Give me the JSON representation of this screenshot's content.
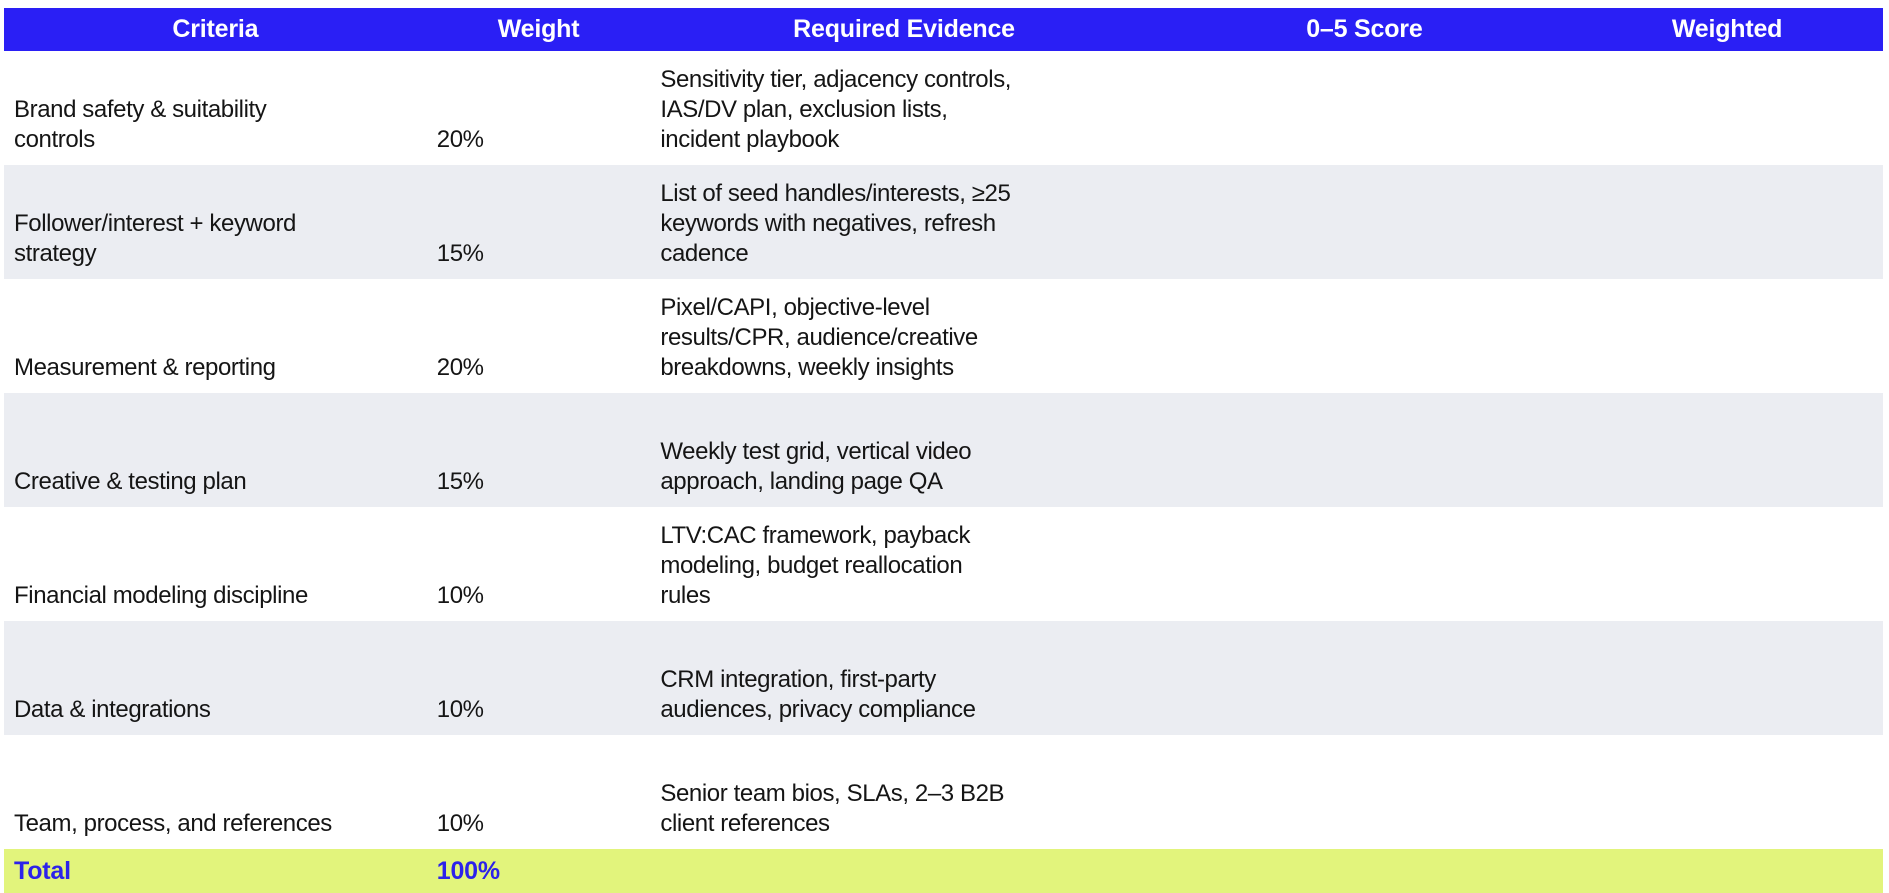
{
  "colors": {
    "header_bg": "#2a1ff5",
    "header_text": "#ffffff",
    "row_alt_bg": "#ebedf2",
    "total_bg": "#e2f47c",
    "total_text": "#2c22ea",
    "body_text": "#151515"
  },
  "table": {
    "headers": [
      "Criteria",
      "Weight",
      "Required Evidence",
      "0–5 Score",
      "Weighted"
    ],
    "rows": [
      {
        "criteria": "Brand safety & suitability\ncontrols",
        "weight": "20%",
        "evidence": "Sensitivity tier, adjacency controls,\nIAS/DV plan, exclusion lists,\nincident playbook",
        "score": "",
        "weighted": ""
      },
      {
        "criteria": "Follower/interest + keyword\nstrategy",
        "weight": "15%",
        "evidence": "List of seed handles/interests, ≥25\nkeywords with negatives, refresh\ncadence",
        "score": "",
        "weighted": ""
      },
      {
        "criteria": "Measurement & reporting",
        "weight": "20%",
        "evidence": "Pixel/CAPI, objective-level\nresults/CPR, audience/creative\nbreakdowns, weekly insights",
        "score": "",
        "weighted": ""
      },
      {
        "criteria": "Creative & testing plan",
        "weight": "15%",
        "evidence": "Weekly test grid, vertical video\napproach, landing page QA",
        "score": "",
        "weighted": ""
      },
      {
        "criteria": "Financial modeling discipline",
        "weight": "10%",
        "evidence": "LTV:CAC framework, payback\nmodeling, budget reallocation\nrules",
        "score": "",
        "weighted": ""
      },
      {
        "criteria": "Data & integrations",
        "weight": "10%",
        "evidence": "CRM integration, first-party\naudiences, privacy compliance",
        "score": "",
        "weighted": ""
      },
      {
        "criteria": "Team, process, and references",
        "weight": "10%",
        "evidence": "Senior team bios, SLAs, 2–3 B2B\nclient references",
        "score": "",
        "weighted": ""
      }
    ],
    "total": {
      "label": "Total",
      "weight": "100%",
      "evidence": "",
      "score": "",
      "weighted": ""
    }
  }
}
